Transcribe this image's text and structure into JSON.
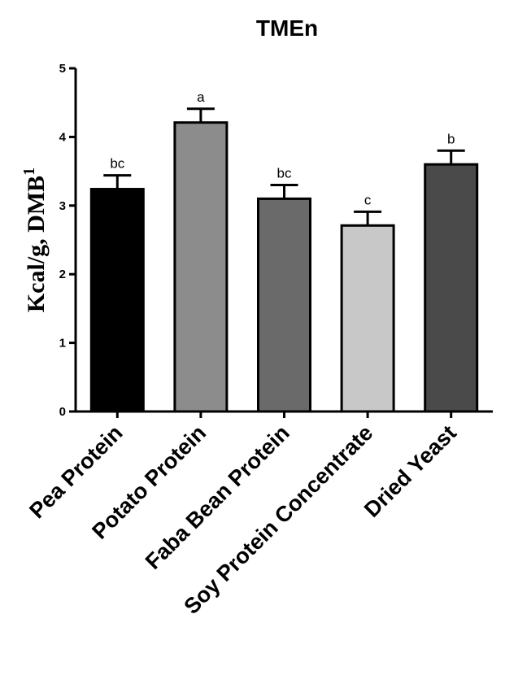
{
  "chart_data": {
    "type": "bar",
    "title": "TMEn",
    "ylabel": "Kcal/g, DMB",
    "ylabel_superscript": "1",
    "xlabel": "",
    "ylim": [
      0,
      5
    ],
    "yticks": [
      "0",
      "1",
      "2",
      "3",
      "4",
      "5"
    ],
    "grid": false,
    "categories": [
      "Pea Protein",
      "Potato Protein",
      "Faba Bean Protein",
      "Soy Protein Concentrate",
      "Dried Yeast"
    ],
    "values": [
      3.24,
      4.21,
      3.1,
      2.71,
      3.6
    ],
    "errors": [
      0.2,
      0.2,
      0.2,
      0.2,
      0.2
    ],
    "significance_labels": [
      "bc",
      "a",
      "bc",
      "c",
      "b"
    ],
    "colors": [
      "#000000",
      "#8c8c8c",
      "#6a6a6a",
      "#c8c8c8",
      "#4a4a4a"
    ]
  }
}
